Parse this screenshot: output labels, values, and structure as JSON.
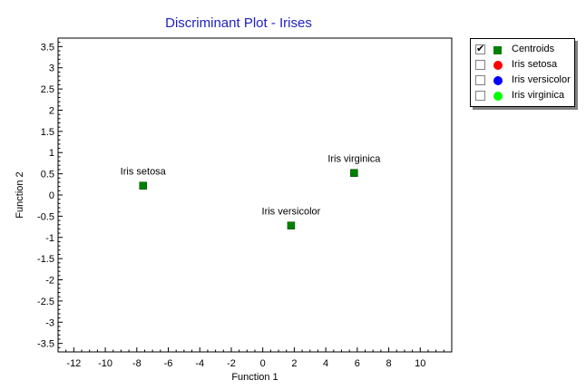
{
  "chart_data": {
    "type": "scatter",
    "title": "Discriminant Plot - Irises",
    "xlabel": "Function 1",
    "ylabel": "Function 2",
    "xlim": [
      -13,
      12
    ],
    "ylim": [
      -3.7,
      3.7
    ],
    "x_ticks": [
      -12,
      -10,
      -8,
      -6,
      -4,
      -2,
      0,
      2,
      4,
      6,
      8,
      10
    ],
    "y_ticks": [
      3.5,
      3,
      2.5,
      2,
      1.5,
      1,
      0.5,
      0,
      -0.5,
      -1,
      -1.5,
      -2,
      -2.5,
      -3,
      -3.5
    ],
    "x_tick_labels": [
      "-12",
      "-10",
      "-8",
      "-6",
      "-4",
      "-2",
      "0",
      "2",
      "4",
      "6",
      "8",
      "10"
    ],
    "y_tick_labels": [
      "3.5",
      "3",
      "2.5",
      "2",
      "1.5",
      "1",
      "0.5",
      "0",
      "-0.5",
      "-1",
      "-1.5",
      "-2",
      "-2.5",
      "-3",
      "-3.5"
    ],
    "grid": false,
    "legend_position": "top-right",
    "series": [
      {
        "name": "Centroids",
        "marker": "square",
        "color": "#008000",
        "checked": true,
        "points": [
          {
            "x": -7.6,
            "y": 0.22,
            "label": "Iris setosa"
          },
          {
            "x": 1.8,
            "y": -0.72,
            "label": "Iris versicolor"
          },
          {
            "x": 5.8,
            "y": 0.52,
            "label": "Iris virginica"
          }
        ]
      },
      {
        "name": "Iris setosa",
        "marker": "circle",
        "color": "#ff0000",
        "checked": false,
        "points": []
      },
      {
        "name": "Iris versicolor",
        "marker": "circle",
        "color": "#0000ff",
        "checked": false,
        "points": []
      },
      {
        "name": "Iris virginica",
        "marker": "circle",
        "color": "#00ff00",
        "checked": false,
        "points": []
      }
    ]
  },
  "colors": {
    "title": "#2020c0",
    "axis": "#000000",
    "plot_background": "#ffffff"
  }
}
